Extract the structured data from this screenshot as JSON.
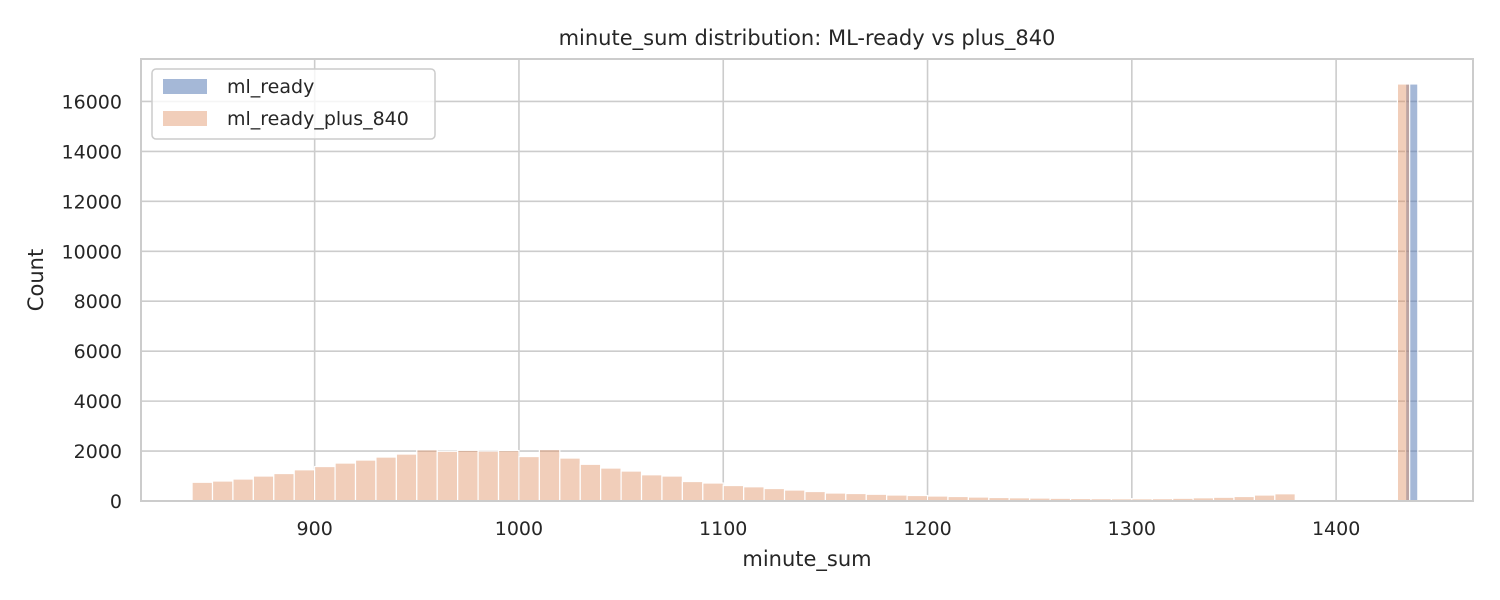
{
  "chart_data": {
    "type": "bar",
    "title": "minute_sum distribution: ML-ready vs plus_840",
    "xlabel": "minute_sum",
    "ylabel": "Count",
    "xlim": [
      815,
      1467
    ],
    "ylim": [
      0,
      17700
    ],
    "xticks": [
      900,
      1000,
      1100,
      1200,
      1300,
      1400
    ],
    "yticks": [
      0,
      2000,
      4000,
      6000,
      8000,
      10000,
      12000,
      14000,
      16000
    ],
    "grid": true,
    "legend": "top-left",
    "series": [
      {
        "name": "ml_ready",
        "color": "#4c72b0",
        "opacity": 0.5,
        "bins": [
          [
            1434,
            1440,
            16700
          ]
        ]
      },
      {
        "name": "ml_ready_plus_840",
        "color": "#dd8452",
        "opacity": 0.4,
        "bins": [
          [
            840,
            850,
            750
          ],
          [
            850,
            860,
            800
          ],
          [
            860,
            870,
            880
          ],
          [
            870,
            880,
            1000
          ],
          [
            880,
            890,
            1100
          ],
          [
            890,
            900,
            1250
          ],
          [
            900,
            910,
            1380
          ],
          [
            910,
            920,
            1520
          ],
          [
            920,
            930,
            1640
          ],
          [
            930,
            940,
            1760
          ],
          [
            940,
            950,
            1880
          ],
          [
            950,
            960,
            2050
          ],
          [
            960,
            970,
            1990
          ],
          [
            970,
            980,
            2030
          ],
          [
            980,
            990,
            2000
          ],
          [
            990,
            1000,
            2020
          ],
          [
            1000,
            1010,
            1780
          ],
          [
            1010,
            1020,
            2060
          ],
          [
            1020,
            1030,
            1720
          ],
          [
            1030,
            1040,
            1470
          ],
          [
            1040,
            1050,
            1320
          ],
          [
            1050,
            1060,
            1200
          ],
          [
            1060,
            1070,
            1050
          ],
          [
            1070,
            1080,
            1000
          ],
          [
            1080,
            1090,
            780
          ],
          [
            1090,
            1100,
            720
          ],
          [
            1100,
            1110,
            620
          ],
          [
            1110,
            1120,
            570
          ],
          [
            1120,
            1130,
            500
          ],
          [
            1130,
            1140,
            440
          ],
          [
            1140,
            1150,
            380
          ],
          [
            1150,
            1160,
            320
          ],
          [
            1160,
            1170,
            300
          ],
          [
            1170,
            1180,
            270
          ],
          [
            1180,
            1190,
            240
          ],
          [
            1190,
            1200,
            220
          ],
          [
            1200,
            1210,
            200
          ],
          [
            1210,
            1220,
            180
          ],
          [
            1220,
            1230,
            160
          ],
          [
            1230,
            1240,
            140
          ],
          [
            1240,
            1250,
            130
          ],
          [
            1250,
            1260,
            120
          ],
          [
            1260,
            1270,
            110
          ],
          [
            1270,
            1280,
            100
          ],
          [
            1280,
            1290,
            95
          ],
          [
            1290,
            1300,
            90
          ],
          [
            1300,
            1310,
            90
          ],
          [
            1310,
            1320,
            95
          ],
          [
            1320,
            1330,
            110
          ],
          [
            1330,
            1340,
            130
          ],
          [
            1340,
            1350,
            150
          ],
          [
            1350,
            1360,
            180
          ],
          [
            1360,
            1370,
            240
          ],
          [
            1370,
            1380,
            290
          ],
          [
            1430,
            1436,
            16700
          ]
        ]
      }
    ]
  }
}
